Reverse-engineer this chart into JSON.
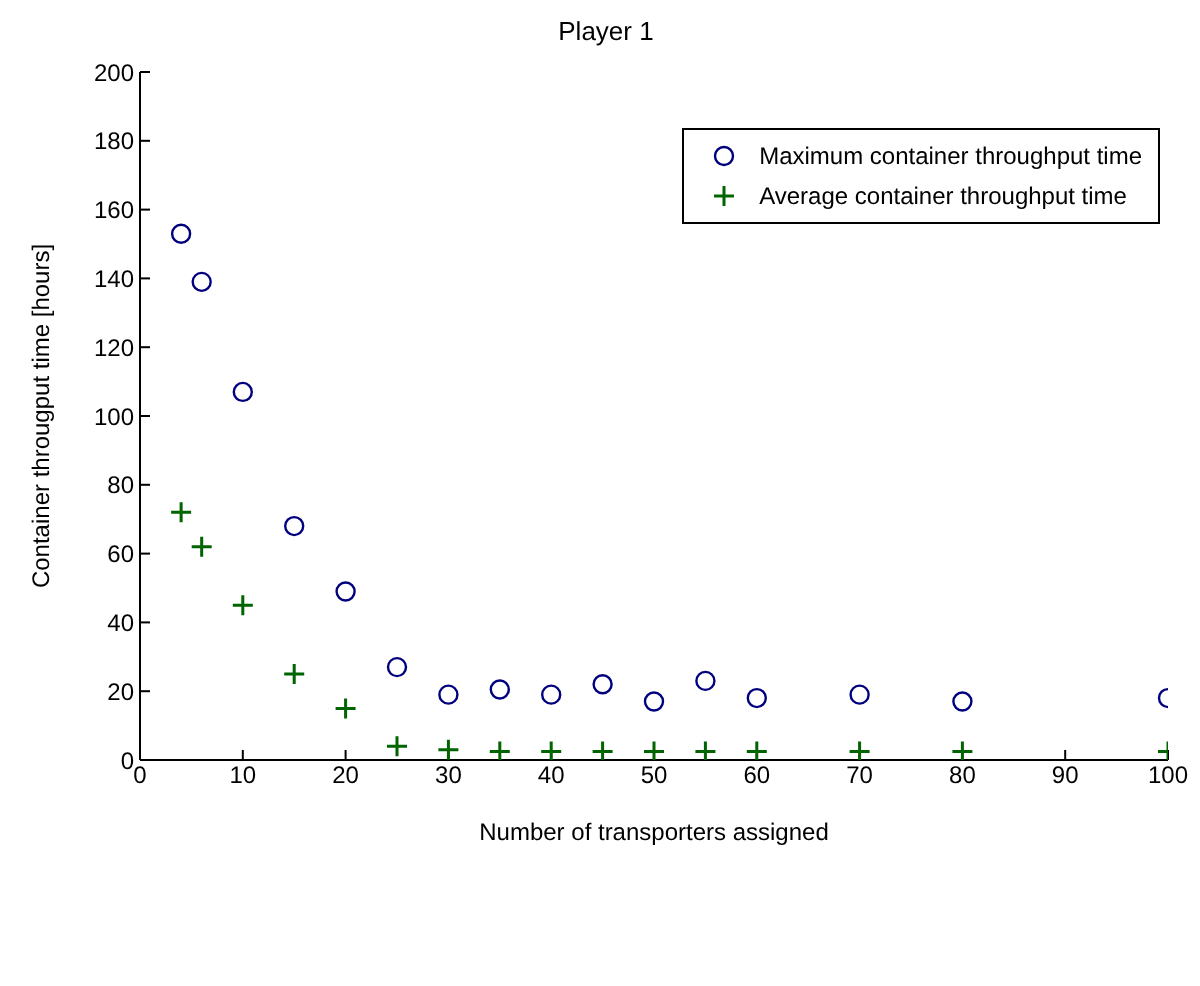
{
  "chart_data": {
    "type": "scatter",
    "title": "Player 1",
    "xlabel": "Number of transporters assigned",
    "ylabel": "Container througput time [hours]",
    "xlim": [
      0,
      100
    ],
    "xticks": [
      0,
      10,
      20,
      30,
      40,
      50,
      60,
      70,
      80,
      90,
      100
    ],
    "ylim": [
      0,
      200
    ],
    "yticks": [
      0,
      20,
      40,
      60,
      80,
      100,
      120,
      140,
      160,
      180,
      200
    ],
    "grid": false,
    "legend": "top right",
    "series": [
      {
        "name": "Maximum container throughput time",
        "color": "#00007f",
        "marker": "circle",
        "x": [
          4,
          6,
          10,
          15,
          20,
          25,
          30,
          35,
          40,
          45,
          50,
          55,
          60,
          70,
          80,
          100
        ],
        "values": [
          153,
          139,
          107,
          68,
          49,
          27,
          19,
          20.5,
          19,
          22,
          17,
          23,
          18,
          19,
          17,
          18
        ]
      },
      {
        "name": "Average container throughput time",
        "color": "#006400",
        "marker": "cross",
        "x": [
          4,
          6,
          10,
          15,
          20,
          25,
          30,
          35,
          40,
          45,
          50,
          55,
          60,
          70,
          80,
          100
        ],
        "values": [
          72,
          62,
          45,
          25,
          15,
          4,
          3,
          2.5,
          2.5,
          2.5,
          2.5,
          2.5,
          2.5,
          2.5,
          2.5,
          2.5
        ]
      }
    ]
  }
}
